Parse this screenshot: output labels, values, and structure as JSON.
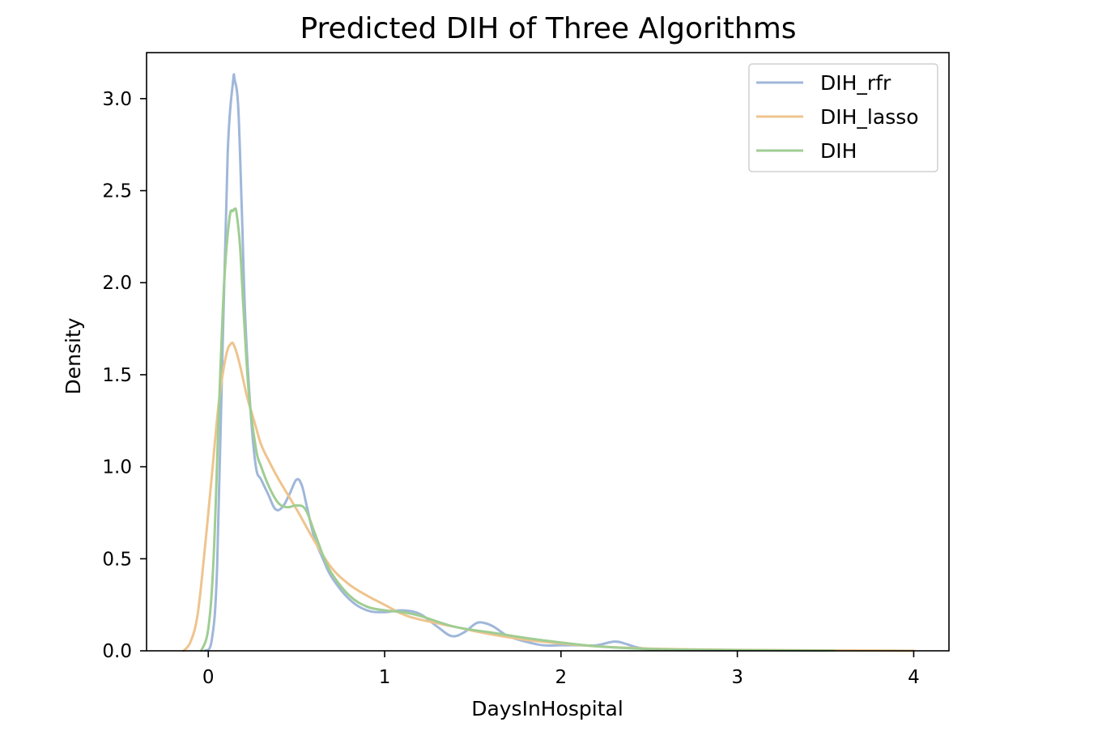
{
  "chart_data": {
    "type": "line",
    "title": "Predicted DIH of Three Algorithms",
    "xlabel": "DaysInHospital",
    "ylabel": "Density",
    "xlim": [
      -0.35,
      4.2
    ],
    "ylim": [
      0,
      3.25
    ],
    "xticks": [
      0,
      1,
      2,
      3,
      4
    ],
    "xtick_labels": [
      "0",
      "1",
      "2",
      "3",
      "4"
    ],
    "yticks": [
      0,
      0.5,
      1,
      1.5,
      2,
      2.5,
      3
    ],
    "ytick_labels": [
      "0.0",
      "0.5",
      "1.0",
      "1.5",
      "2.0",
      "2.5",
      "3.0"
    ],
    "grid": false,
    "legend_position": "top-right",
    "series": [
      {
        "name": "DIH_rfr",
        "color": "#9fb7d9",
        "x": [
          -0.02,
          0.02,
          0.05,
          0.08,
          0.11,
          0.14,
          0.15,
          0.17,
          0.19,
          0.21,
          0.24,
          0.27,
          0.3,
          0.34,
          0.38,
          0.42,
          0.46,
          0.5,
          0.53,
          0.56,
          0.6,
          0.65,
          0.7,
          0.8,
          0.9,
          1.0,
          1.1,
          1.2,
          1.3,
          1.38,
          1.45,
          1.52,
          1.57,
          1.62,
          1.7,
          1.8,
          1.9,
          2.0,
          2.1,
          2.2,
          2.3,
          2.36,
          2.45,
          2.6,
          3.0,
          3.5
        ],
        "y": [
          0.0,
          0.06,
          0.45,
          1.6,
          2.7,
          3.09,
          3.1,
          2.95,
          2.4,
          1.8,
          1.3,
          1.0,
          0.93,
          0.85,
          0.77,
          0.78,
          0.85,
          0.93,
          0.9,
          0.78,
          0.62,
          0.5,
          0.4,
          0.28,
          0.22,
          0.21,
          0.22,
          0.2,
          0.13,
          0.08,
          0.1,
          0.15,
          0.15,
          0.13,
          0.08,
          0.05,
          0.03,
          0.03,
          0.03,
          0.03,
          0.05,
          0.04,
          0.015,
          0.005,
          0.002,
          0.001
        ]
      },
      {
        "name": "DIH_lasso",
        "color": "#eec48e",
        "x": [
          -0.14,
          -0.1,
          -0.06,
          -0.02,
          0.02,
          0.06,
          0.1,
          0.13,
          0.15,
          0.18,
          0.22,
          0.26,
          0.3,
          0.35,
          0.4,
          0.5,
          0.6,
          0.7,
          0.8,
          0.9,
          1.0,
          1.1,
          1.2,
          1.4,
          1.6,
          1.8,
          2.0,
          2.2,
          2.5,
          3.0,
          3.5,
          3.8,
          4.0
        ],
        "y": [
          0.0,
          0.05,
          0.2,
          0.55,
          0.95,
          1.35,
          1.6,
          1.67,
          1.65,
          1.55,
          1.38,
          1.25,
          1.12,
          1.02,
          0.93,
          0.77,
          0.6,
          0.45,
          0.36,
          0.3,
          0.25,
          0.2,
          0.17,
          0.13,
          0.09,
          0.06,
          0.04,
          0.025,
          0.012,
          0.005,
          0.002,
          0.001,
          0.0
        ]
      },
      {
        "name": "DIH",
        "color": "#9fcd93",
        "x": [
          -0.04,
          0.0,
          0.03,
          0.06,
          0.09,
          0.12,
          0.14,
          0.15,
          0.16,
          0.18,
          0.2,
          0.23,
          0.27,
          0.3,
          0.35,
          0.4,
          0.45,
          0.5,
          0.55,
          0.6,
          0.65,
          0.7,
          0.8,
          0.9,
          1.0,
          1.1,
          1.2,
          1.4,
          1.6,
          1.8,
          2.0,
          2.2,
          2.5,
          3.0,
          3.55
        ],
        "y": [
          0.0,
          0.12,
          0.5,
          1.3,
          2.0,
          2.35,
          2.39,
          2.4,
          2.38,
          2.2,
          1.85,
          1.4,
          1.1,
          1.0,
          0.88,
          0.8,
          0.78,
          0.79,
          0.77,
          0.65,
          0.52,
          0.42,
          0.3,
          0.24,
          0.22,
          0.21,
          0.19,
          0.13,
          0.1,
          0.07,
          0.045,
          0.025,
          0.01,
          0.004,
          0.001
        ]
      }
    ]
  }
}
